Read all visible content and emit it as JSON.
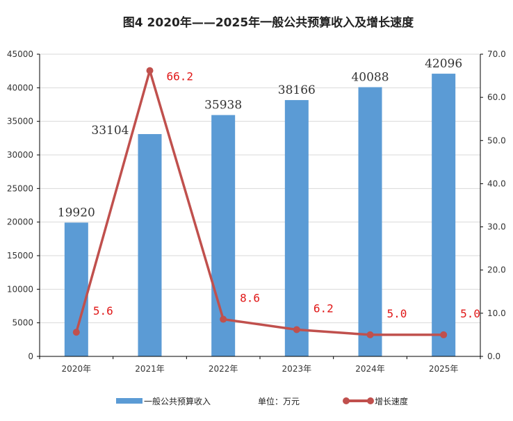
{
  "chart_data": {
    "type": "bar",
    "title": "图4   2020年——2025年一般公共预算收入及增长速度",
    "categories": [
      "2020年",
      "2021年",
      "2022年",
      "2023年",
      "2024年",
      "2025年"
    ],
    "series": [
      {
        "name": "一般公共预算收入",
        "type": "bar",
        "axis": "left",
        "color": "#5b9bd5",
        "values": [
          19920,
          33104,
          35938,
          38166,
          40088,
          42096
        ],
        "labels": [
          "19920",
          "33104",
          "35938",
          "38166",
          "40088",
          "42096"
        ]
      },
      {
        "name": "增长速度",
        "type": "line",
        "axis": "right",
        "color": "#c0504d",
        "values": [
          5.6,
          66.2,
          8.6,
          6.2,
          5.0,
          5.0
        ],
        "labels": [
          "5.6",
          "66.2",
          "8.6",
          "6.2",
          "5.0",
          "5.0"
        ]
      }
    ],
    "y_left": {
      "ylim": [
        0,
        45000
      ],
      "ticks": [
        "0",
        "5000",
        "10000",
        "15000",
        "20000",
        "25000",
        "30000",
        "35000",
        "40000",
        "45000"
      ]
    },
    "y_right": {
      "ylim": [
        0,
        70
      ],
      "ticks": [
        "0.0",
        "10.0",
        "20.0",
        "30.0",
        "40.0",
        "50.0",
        "60.0",
        "70.0"
      ]
    },
    "grid": true,
    "legend": {
      "placement": "bottom",
      "unit_note": "单位：万元"
    },
    "rate_label_color": "#e01818"
  }
}
